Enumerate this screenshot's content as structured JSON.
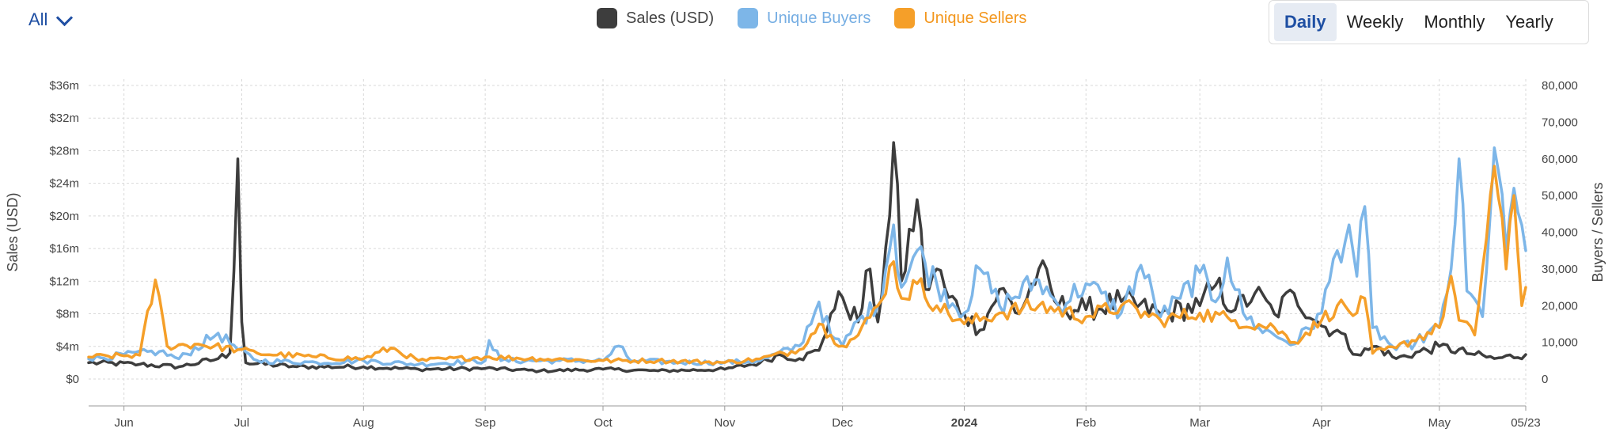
{
  "filter": {
    "label": "All"
  },
  "legend": [
    {
      "name": "Sales (USD)",
      "color": "#3d3d3d"
    },
    {
      "name": "Unique Buyers",
      "color": "#7db6e8"
    },
    {
      "name": "Unique Sellers",
      "color": "#f59f29"
    }
  ],
  "period_buttons": [
    {
      "label": "Daily",
      "active": true
    },
    {
      "label": "Weekly",
      "active": false
    },
    {
      "label": "Monthly",
      "active": false
    },
    {
      "label": "Yearly",
      "active": false
    }
  ],
  "chart_data": {
    "type": "line",
    "x_start": "2023-05-23",
    "x_end": "2024-05-23",
    "x_tick_labels": [
      "Jun",
      "Jul",
      "Aug",
      "Sep",
      "Oct",
      "Nov",
      "Dec",
      "2024",
      "Feb",
      "Mar",
      "Apr",
      "May",
      "05/23"
    ],
    "y_left": {
      "label": "Sales (USD)",
      "ticks": [
        "$0",
        "$4m",
        "$8m",
        "$12m",
        "$16m",
        "$20m",
        "$24m",
        "$28m",
        "$32m",
        "$36m"
      ],
      "range": [
        0,
        36
      ]
    },
    "y_right": {
      "label": "Buyers / Sellers",
      "ticks": [
        "0",
        "10,000",
        "20,000",
        "30,000",
        "40,000",
        "50,000",
        "60,000",
        "70,000",
        "80,000"
      ],
      "range": [
        0,
        80000
      ]
    },
    "grid": true,
    "legend_position": "top-center",
    "series": [
      {
        "name": "Sales (USD)",
        "axis": "left",
        "unit": "USD millions",
        "points": [
          [
            "2023-05-23",
            2.0
          ],
          [
            "2023-06-05",
            1.8
          ],
          [
            "2023-06-15",
            1.5
          ],
          [
            "2023-06-25",
            2.5
          ],
          [
            "2023-06-28",
            3.2
          ],
          [
            "2023-06-30",
            27.0
          ],
          [
            "2023-07-01",
            7.0
          ],
          [
            "2023-07-02",
            2.0
          ],
          [
            "2023-07-15",
            1.5
          ],
          [
            "2023-08-01",
            1.5
          ],
          [
            "2023-08-15",
            1.2
          ],
          [
            "2023-09-01",
            1.3
          ],
          [
            "2023-09-15",
            1.0
          ],
          [
            "2023-10-01",
            1.2
          ],
          [
            "2023-10-15",
            1.0
          ],
          [
            "2023-11-01",
            1.2
          ],
          [
            "2023-11-10",
            2.0
          ],
          [
            "2023-11-15",
            3.0
          ],
          [
            "2023-11-20",
            2.5
          ],
          [
            "2023-11-25",
            3.5
          ],
          [
            "2023-11-28",
            8.0
          ],
          [
            "2023-12-01",
            10.0
          ],
          [
            "2023-12-05",
            7.0
          ],
          [
            "2023-12-08",
            13.5
          ],
          [
            "2023-12-10",
            7.0
          ],
          [
            "2023-12-13",
            20.0
          ],
          [
            "2023-12-14",
            29.0
          ],
          [
            "2023-12-16",
            12.0
          ],
          [
            "2023-12-20",
            22.0
          ],
          [
            "2023-12-22",
            11.0
          ],
          [
            "2023-12-25",
            13.5
          ],
          [
            "2023-12-28",
            10.0
          ],
          [
            "2024-01-01",
            8.0
          ],
          [
            "2024-01-05",
            6.0
          ],
          [
            "2024-01-10",
            11.0
          ],
          [
            "2024-01-15",
            8.0
          ],
          [
            "2024-01-20",
            13.5
          ],
          [
            "2024-01-25",
            9.0
          ],
          [
            "2024-02-01",
            8.5
          ],
          [
            "2024-02-10",
            9.5
          ],
          [
            "2024-02-20",
            8.0
          ],
          [
            "2024-03-01",
            9.0
          ],
          [
            "2024-03-05",
            11.5
          ],
          [
            "2024-03-10",
            8.5
          ],
          [
            "2024-03-15",
            10.5
          ],
          [
            "2024-03-20",
            8.0
          ],
          [
            "2024-03-25",
            10.5
          ],
          [
            "2024-04-01",
            6.5
          ],
          [
            "2024-04-05",
            6.0
          ],
          [
            "2024-04-10",
            3.0
          ],
          [
            "2024-04-15",
            4.0
          ],
          [
            "2024-04-20",
            2.5
          ],
          [
            "2024-05-01",
            4.0
          ],
          [
            "2024-05-10",
            3.0
          ],
          [
            "2024-05-15",
            2.5
          ],
          [
            "2024-05-23",
            3.0
          ]
        ]
      },
      {
        "name": "Unique Buyers",
        "axis": "right",
        "unit": "count",
        "points": [
          [
            "2023-05-23",
            5500
          ],
          [
            "2023-06-10",
            7500
          ],
          [
            "2023-06-15",
            5500
          ],
          [
            "2023-06-25",
            12500
          ],
          [
            "2023-06-30",
            8000
          ],
          [
            "2023-07-05",
            5000
          ],
          [
            "2023-07-20",
            4500
          ],
          [
            "2023-08-01",
            5000
          ],
          [
            "2023-08-15",
            4000
          ],
          [
            "2023-09-01",
            5000
          ],
          [
            "2023-09-02",
            10500
          ],
          [
            "2023-09-05",
            5000
          ],
          [
            "2023-09-20",
            5000
          ],
          [
            "2023-10-01",
            5000
          ],
          [
            "2023-10-05",
            9000
          ],
          [
            "2023-10-08",
            5000
          ],
          [
            "2023-10-20",
            4500
          ],
          [
            "2023-11-01",
            4500
          ],
          [
            "2023-11-10",
            5000
          ],
          [
            "2023-11-20",
            9000
          ],
          [
            "2023-11-25",
            21000
          ],
          [
            "2023-11-28",
            12000
          ],
          [
            "2023-12-01",
            9000
          ],
          [
            "2023-12-05",
            16000
          ],
          [
            "2023-12-10",
            20000
          ],
          [
            "2023-12-14",
            42000
          ],
          [
            "2023-12-16",
            25000
          ],
          [
            "2023-12-20",
            35000
          ],
          [
            "2023-12-25",
            26000
          ],
          [
            "2024-01-01",
            18000
          ],
          [
            "2024-01-05",
            30000
          ],
          [
            "2024-01-10",
            20000
          ],
          [
            "2024-01-20",
            27000
          ],
          [
            "2024-01-25",
            20000
          ],
          [
            "2024-02-01",
            26000
          ],
          [
            "2024-02-10",
            18000
          ],
          [
            "2024-02-15",
            31000
          ],
          [
            "2024-02-20",
            17000
          ],
          [
            "2024-02-25",
            22000
          ],
          [
            "2024-03-01",
            29000
          ],
          [
            "2024-03-05",
            21000
          ],
          [
            "2024-03-08",
            33000
          ],
          [
            "2024-03-12",
            18000
          ],
          [
            "2024-03-16",
            14000
          ],
          [
            "2024-03-20",
            12000
          ],
          [
            "2024-03-25",
            9500
          ],
          [
            "2024-04-01",
            18000
          ],
          [
            "2024-04-05",
            35000
          ],
          [
            "2024-04-08",
            42000
          ],
          [
            "2024-04-10",
            28000
          ],
          [
            "2024-04-12",
            47000
          ],
          [
            "2024-04-14",
            14000
          ],
          [
            "2024-04-20",
            8000
          ],
          [
            "2024-04-25",
            10000
          ],
          [
            "2024-05-01",
            14000
          ],
          [
            "2024-05-04",
            30000
          ],
          [
            "2024-05-06",
            60000
          ],
          [
            "2024-05-08",
            24000
          ],
          [
            "2024-05-12",
            17000
          ],
          [
            "2024-05-15",
            63000
          ],
          [
            "2024-05-18",
            35000
          ],
          [
            "2024-05-20",
            52000
          ],
          [
            "2024-05-22",
            42000
          ],
          [
            "2024-05-23",
            35000
          ]
        ]
      },
      {
        "name": "Unique Sellers",
        "axis": "right",
        "unit": "count",
        "points": [
          [
            "2023-05-23",
            6000
          ],
          [
            "2023-06-05",
            6500
          ],
          [
            "2023-06-09",
            27000
          ],
          [
            "2023-06-12",
            9000
          ],
          [
            "2023-06-20",
            9500
          ],
          [
            "2023-06-30",
            8000
          ],
          [
            "2023-07-05",
            7000
          ],
          [
            "2023-07-20",
            6000
          ],
          [
            "2023-08-01",
            5500
          ],
          [
            "2023-08-08",
            8500
          ],
          [
            "2023-08-15",
            5000
          ],
          [
            "2023-09-01",
            6000
          ],
          [
            "2023-09-15",
            5500
          ],
          [
            "2023-10-01",
            5000
          ],
          [
            "2023-10-15",
            5000
          ],
          [
            "2023-11-01",
            4500
          ],
          [
            "2023-11-10",
            5500
          ],
          [
            "2023-11-20",
            8000
          ],
          [
            "2023-11-25",
            15000
          ],
          [
            "2023-11-28",
            12000
          ],
          [
            "2023-12-01",
            9000
          ],
          [
            "2023-12-05",
            12000
          ],
          [
            "2023-12-10",
            20000
          ],
          [
            "2023-12-14",
            32000
          ],
          [
            "2023-12-16",
            22000
          ],
          [
            "2023-12-20",
            26000
          ],
          [
            "2023-12-25",
            20000
          ],
          [
            "2024-01-01",
            15000
          ],
          [
            "2024-01-10",
            18000
          ],
          [
            "2024-01-20",
            20000
          ],
          [
            "2024-02-01",
            17000
          ],
          [
            "2024-02-10",
            20000
          ],
          [
            "2024-02-20",
            16000
          ],
          [
            "2024-03-01",
            18000
          ],
          [
            "2024-03-10",
            16000
          ],
          [
            "2024-03-20",
            14000
          ],
          [
            "2024-03-25",
            10000
          ],
          [
            "2024-04-01",
            16000
          ],
          [
            "2024-04-05",
            20000
          ],
          [
            "2024-04-10",
            18000
          ],
          [
            "2024-04-12",
            22000
          ],
          [
            "2024-04-14",
            7000
          ],
          [
            "2024-04-20",
            8500
          ],
          [
            "2024-05-01",
            14000
          ],
          [
            "2024-05-04",
            28000
          ],
          [
            "2024-05-06",
            16000
          ],
          [
            "2024-05-10",
            12000
          ],
          [
            "2024-05-15",
            58000
          ],
          [
            "2024-05-18",
            30000
          ],
          [
            "2024-05-20",
            50000
          ],
          [
            "2024-05-22",
            20000
          ],
          [
            "2024-05-23",
            25000
          ]
        ]
      }
    ]
  }
}
